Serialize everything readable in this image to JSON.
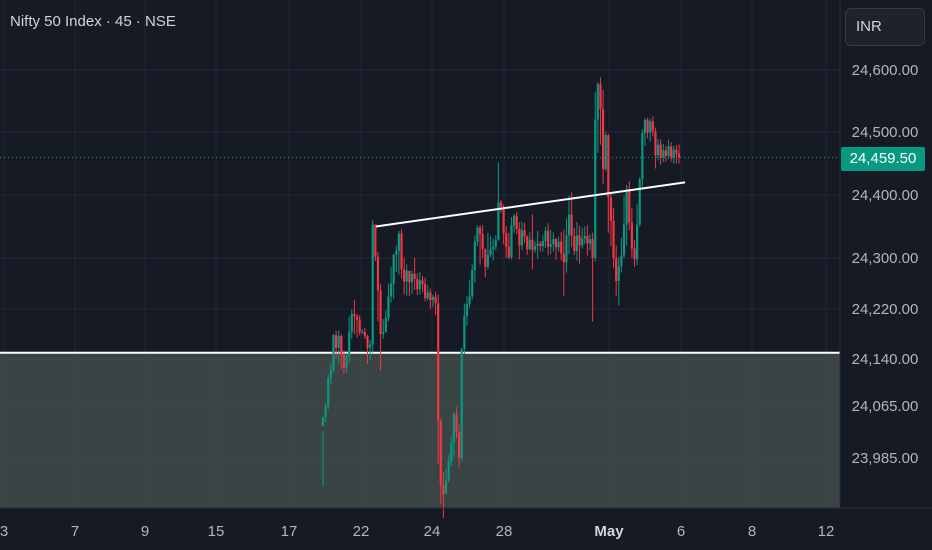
{
  "header": {
    "title": "Nifty 50 Index · 45 · NSE"
  },
  "currency": "INR",
  "last_price_label": "24,459.50",
  "colors": {
    "up": "#089981",
    "down": "#f23645",
    "background": "#161a25",
    "zone": "#4a5552",
    "trendline": "#ffffff"
  },
  "chart_data": {
    "type": "candlestick",
    "title": "Nifty 50 Index · 45 · NSE",
    "currency": "INR",
    "x_ticks": [
      "3",
      "7",
      "9",
      "15",
      "17",
      "22",
      "24",
      "28",
      "May",
      "6",
      "8",
      "12"
    ],
    "y_ticks": [
      "24,600.00",
      "24,500.00",
      "24,400.00",
      "24,300.00",
      "24,220.00",
      "24,140.00",
      "24,065.00",
      "23,985.00"
    ],
    "y_range": [
      23930,
      24660
    ],
    "last_price": 24459.5,
    "horizontal_level": 24150,
    "shaded_zone_top": 24150,
    "trendline": [
      {
        "date": "Apr 22",
        "price": 24350
      },
      {
        "date": "May 6",
        "price": 24420
      }
    ],
    "candles": [
      [
        24034,
        24048,
        24026,
        23933
      ],
      [
        24048,
        24064,
        24070,
        24040
      ],
      [
        24064,
        24110,
        24115,
        24060
      ],
      [
        24110,
        24122,
        24133,
        24100
      ],
      [
        24122,
        24178,
        24180,
        24118
      ],
      [
        24178,
        24158,
        24185,
        24140
      ],
      [
        24158,
        24177,
        24186,
        24132
      ],
      [
        24177,
        24146,
        24180,
        24124
      ],
      [
        24146,
        24126,
        24154,
        24117
      ],
      [
        24126,
        24145,
        24150,
        24118
      ],
      [
        24145,
        24184,
        24208,
        24134
      ],
      [
        24184,
        24212,
        24219,
        24172
      ],
      [
        24212,
        24208,
        24234,
        24180
      ],
      [
        24208,
        24203,
        24212,
        24174
      ],
      [
        24203,
        24183,
        24210,
        24178
      ],
      [
        24183,
        24183,
        24188,
        24180
      ],
      [
        24183,
        24177,
        24190,
        24172
      ],
      [
        24177,
        24158,
        24179,
        24132
      ],
      [
        24158,
        24163,
        24170,
        24138
      ],
      [
        24163,
        24353,
        24360,
        24150
      ],
      [
        24353,
        24302,
        24353,
        24295
      ],
      [
        24302,
        24249,
        24310,
        24200
      ],
      [
        24249,
        24180,
        24260,
        24121
      ],
      [
        24180,
        24183,
        24204,
        24172
      ],
      [
        24183,
        24206,
        24218,
        24182
      ],
      [
        24206,
        24240,
        24260,
        24200
      ],
      [
        24240,
        24260,
        24286,
        24230
      ],
      [
        24260,
        24305,
        24307,
        24236
      ],
      [
        24305,
        24311,
        24320,
        24278
      ],
      [
        24311,
        24339,
        24343,
        24274
      ],
      [
        24339,
        24282,
        24346,
        24268
      ],
      [
        24282,
        24263,
        24300,
        24243
      ],
      [
        24263,
        24280,
        24290,
        24241
      ],
      [
        24280,
        24262,
        24274,
        24240
      ],
      [
        24262,
        24275,
        24280,
        24244
      ],
      [
        24275,
        24267,
        24300,
        24250
      ],
      [
        24267,
        24251,
        24276,
        24242
      ],
      [
        24251,
        24265,
        24278,
        24243
      ],
      [
        24265,
        24259,
        24272,
        24246
      ],
      [
        24259,
        24237,
        24269,
        24232
      ],
      [
        24237,
        24246,
        24257,
        24233
      ],
      [
        24246,
        24234,
        24252,
        24220
      ],
      [
        24234,
        24239,
        24242,
        24223
      ],
      [
        24239,
        24229,
        24247,
        24210
      ],
      [
        24229,
        24042,
        24243,
        23975
      ],
      [
        24042,
        23935,
        24046,
        23900
      ],
      [
        23935,
        23919,
        23960,
        23875
      ],
      [
        23919,
        23944,
        23965,
        23928
      ],
      [
        23944,
        23979,
        23990,
        23940
      ],
      [
        23979,
        24008,
        24018,
        23970
      ],
      [
        24008,
        24052,
        24055,
        23986
      ],
      [
        24052,
        24025,
        24063,
        24015
      ],
      [
        24025,
        23985,
        24036,
        23968
      ],
      [
        23985,
        24156,
        24158,
        23978
      ],
      [
        24156,
        24209,
        24229,
        24148
      ],
      [
        24209,
        24228,
        24240,
        24193
      ],
      [
        24228,
        24240,
        24265,
        24222
      ],
      [
        24240,
        24281,
        24290,
        24235
      ],
      [
        24281,
        24326,
        24336,
        24261
      ],
      [
        24326,
        24348,
        24352,
        24319
      ],
      [
        24348,
        24338,
        24352,
        24290
      ],
      [
        24338,
        24314,
        24352,
        24300
      ],
      [
        24314,
        24286,
        24315,
        24270
      ],
      [
        24286,
        24305,
        24340,
        24282
      ],
      [
        24305,
        24314,
        24335,
        24301
      ],
      [
        24314,
        24318,
        24331,
        24296
      ],
      [
        24318,
        24328,
        24336,
        24312
      ],
      [
        24328,
        24388,
        24451,
        24328
      ],
      [
        24388,
        24381,
        24392,
        24372
      ],
      [
        24381,
        24339,
        24385,
        24322
      ],
      [
        24339,
        24318,
        24350,
        24300
      ],
      [
        24318,
        24301,
        24340,
        24298
      ],
      [
        24301,
        24352,
        24365,
        24298
      ],
      [
        24352,
        24367,
        24370,
        24340
      ],
      [
        24367,
        24346,
        24373,
        24337
      ],
      [
        24346,
        24320,
        24357,
        24298
      ],
      [
        24320,
        24344,
        24358,
        24312
      ],
      [
        24344,
        24334,
        24356,
        24324
      ],
      [
        24334,
        24314,
        24336,
        24305
      ],
      [
        24314,
        24329,
        24341,
        24312
      ],
      [
        24329,
        24313,
        24369,
        24282
      ],
      [
        24313,
        24319,
        24326,
        24308
      ],
      [
        24319,
        24323,
        24343,
        24299
      ],
      [
        24323,
        24319,
        24327,
        24310
      ],
      [
        24319,
        24327,
        24336,
        24310
      ],
      [
        24327,
        24343,
        24349,
        24316
      ],
      [
        24343,
        24318,
        24355,
        24304
      ],
      [
        24318,
        24322,
        24345,
        24306
      ],
      [
        24322,
        24330,
        24341,
        24310
      ],
      [
        24330,
        24317,
        24332,
        24297
      ],
      [
        24317,
        24326,
        24334,
        24310
      ],
      [
        24326,
        24307,
        24341,
        24296
      ],
      [
        24307,
        24293,
        24345,
        24241
      ],
      [
        24293,
        24336,
        24363,
        24277
      ],
      [
        24336,
        24369,
        24399,
        24306
      ],
      [
        24369,
        24335,
        24404,
        24317
      ],
      [
        24335,
        24311,
        24348,
        24305
      ],
      [
        24311,
        24336,
        24357,
        24296
      ],
      [
        24336,
        24320,
        24351,
        24291
      ],
      [
        24320,
        24331,
        24348,
        24315
      ],
      [
        24331,
        24335,
        24350,
        24322
      ],
      [
        24335,
        24323,
        24352,
        24304
      ],
      [
        24323,
        24330,
        24338,
        24312
      ],
      [
        24330,
        24300,
        24340,
        24200
      ],
      [
        24300,
        24520,
        24565,
        24295
      ],
      [
        24520,
        24577,
        24581,
        24467
      ],
      [
        24577,
        24537,
        24588,
        24480
      ],
      [
        24537,
        24441,
        24568,
        24417
      ],
      [
        24441,
        24495,
        24500,
        24438
      ],
      [
        24495,
        24396,
        24497,
        24340
      ],
      [
        24396,
        24359,
        24405,
        24319
      ],
      [
        24359,
        24300,
        24380,
        24284
      ],
      [
        24300,
        24264,
        24320,
        24240
      ],
      [
        24264,
        24287,
        24301,
        24226
      ],
      [
        24287,
        24304,
        24332,
        24277
      ],
      [
        24304,
        24353,
        24399,
        24300
      ],
      [
        24353,
        24409,
        24416,
        24320
      ],
      [
        24409,
        24356,
        24422,
        24344
      ],
      [
        24356,
        24315,
        24379,
        24300
      ],
      [
        24315,
        24298,
        24328,
        24286
      ],
      [
        24298,
        24353,
        24385,
        24289
      ],
      [
        24353,
        24425,
        24428,
        24350
      ],
      [
        24425,
        24498,
        24504,
        24413
      ],
      [
        24498,
        24519,
        24523,
        24478
      ],
      [
        24519,
        24499,
        24523,
        24490
      ],
      [
        24499,
        24517,
        24521,
        24485
      ],
      [
        24517,
        24501,
        24525,
        24493
      ],
      [
        24501,
        24463,
        24507,
        24442
      ],
      [
        24463,
        24480,
        24489,
        24455
      ],
      [
        24480,
        24459,
        24488,
        24448
      ],
      [
        24459,
        24471,
        24481,
        24452
      ],
      [
        24471,
        24462,
        24478,
        24453
      ],
      [
        24462,
        24477,
        24488,
        24457
      ],
      [
        24477,
        24459,
        24484,
        24453
      ],
      [
        24459,
        24472,
        24478,
        24450
      ],
      [
        24472,
        24466,
        24479,
        24450
      ],
      [
        24466,
        24459.5,
        24480,
        24450
      ]
    ]
  }
}
